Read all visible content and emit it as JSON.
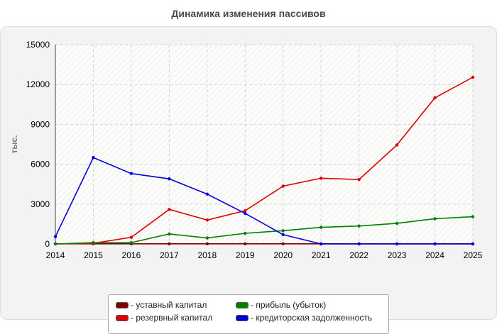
{
  "chart_data": {
    "type": "line",
    "title": "Динамика изменения пассивов",
    "ylabel": "тыс.",
    "xlabel": "",
    "x": [
      "2014",
      "2015",
      "2016",
      "2017",
      "2018",
      "2019",
      "2020",
      "2021",
      "2022",
      "2023",
      "2024",
      "2025"
    ],
    "ylim": [
      0,
      15000
    ],
    "yticks": [
      0,
      3000,
      6000,
      9000,
      12000,
      15000
    ],
    "grid": true,
    "legend_position": "bottom",
    "series": [
      {
        "name": "- уставный капитал",
        "color": "#800000",
        "values": [
          10,
          10,
          10,
          10,
          10,
          10,
          10,
          10,
          10,
          10,
          10,
          10
        ]
      },
      {
        "name": "- резервный капитал",
        "color": "#dd0000",
        "values": [
          0,
          50,
          500,
          2600,
          1800,
          2500,
          4350,
          4950,
          4850,
          7450,
          11000,
          12550
        ]
      },
      {
        "name": "- прибыль (убыток)",
        "color": "#008000",
        "values": [
          0,
          100,
          100,
          750,
          450,
          800,
          1000,
          1250,
          1350,
          1550,
          1900,
          2050
        ]
      },
      {
        "name": "- кредиторская задолженность",
        "color": "#0000dd",
        "values": [
          550,
          6500,
          5300,
          4900,
          3750,
          2300,
          700,
          0,
          0,
          0,
          0,
          0
        ]
      }
    ]
  }
}
